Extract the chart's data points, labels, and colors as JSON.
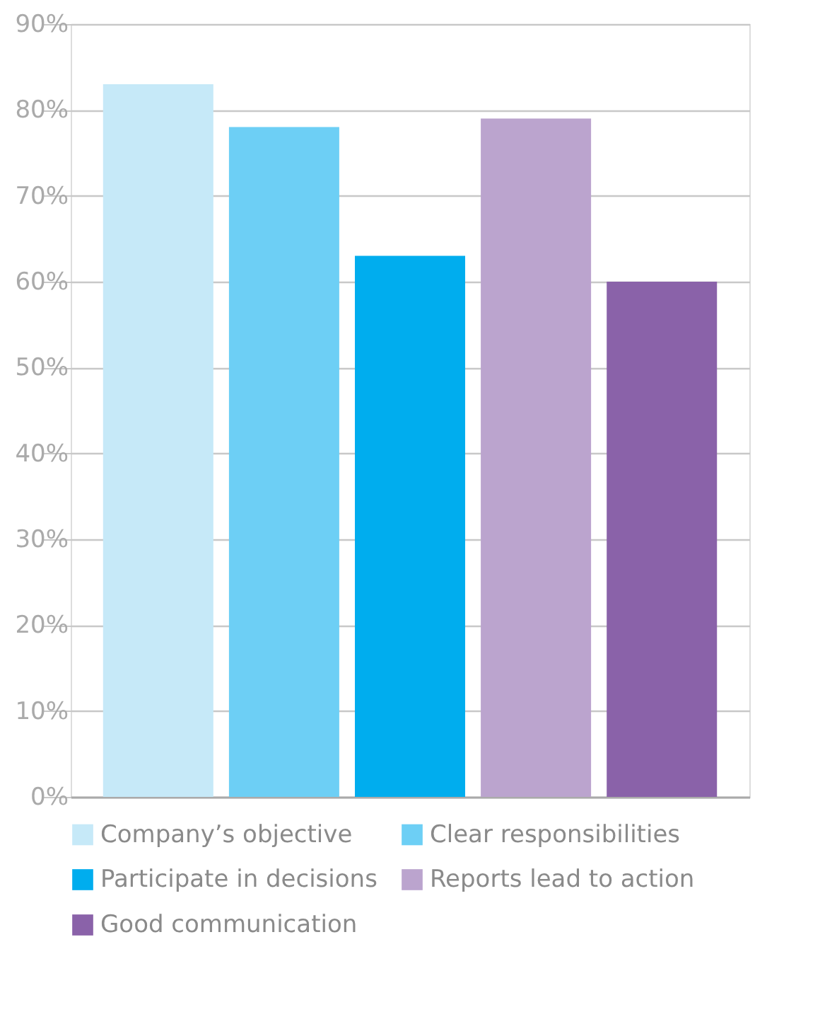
{
  "chart_data": {
    "type": "bar",
    "categories": [
      null,
      null,
      null,
      null,
      null
    ],
    "series": [
      {
        "name": "Company’s objective",
        "color": "#c6e9f8",
        "values": [
          83,
          null,
          null,
          null,
          null
        ]
      },
      {
        "name": "Clear responsibilities",
        "color": "#6dcff5",
        "values": [
          null,
          78,
          null,
          null,
          null
        ]
      },
      {
        "name": "Participate in decisions",
        "color": "#00adee",
        "values": [
          null,
          null,
          63,
          null,
          null
        ]
      },
      {
        "name": "Reports lead to action",
        "color": "#bba4ce",
        "values": [
          null,
          null,
          null,
          79,
          null
        ]
      },
      {
        "name": "Good communication",
        "color": "#8a62a9",
        "values": [
          null,
          null,
          null,
          null,
          60
        ]
      }
    ],
    "ylim": [
      0,
      90
    ],
    "yticks": [
      {
        "value": 0,
        "label": "0%"
      },
      {
        "value": 10,
        "label": "10%"
      },
      {
        "value": 20,
        "label": "20%"
      },
      {
        "value": 30,
        "label": "30%"
      },
      {
        "value": 40,
        "label": "40%"
      },
      {
        "value": 50,
        "label": "50%"
      },
      {
        "value": 60,
        "label": "60%"
      },
      {
        "value": 70,
        "label": "70%"
      },
      {
        "value": 80,
        "label": "80%"
      },
      {
        "value": 90,
        "label": "90%"
      }
    ],
    "grid": "y",
    "legend": "bottom",
    "tick_labels": "y"
  }
}
